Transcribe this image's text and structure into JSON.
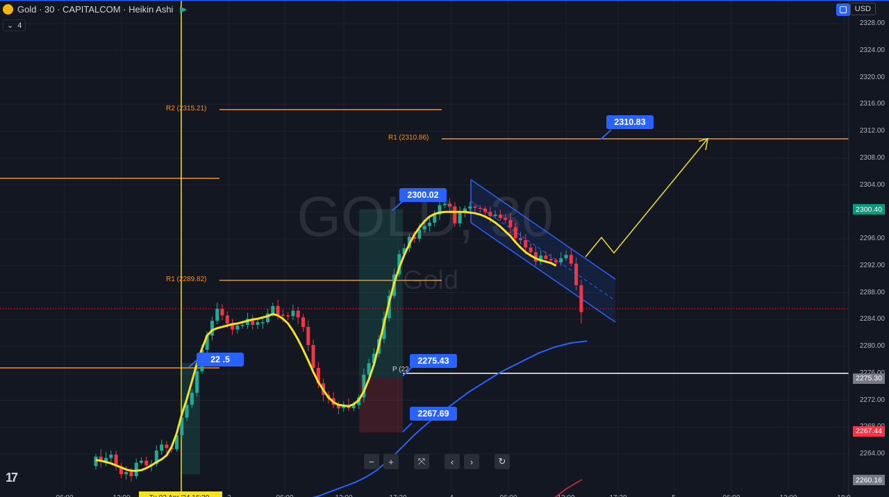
{
  "header": {
    "title": "Gold · 30 · CAPITALCOM · Heikin Ashi",
    "indicator_count": "4",
    "currency": "USD",
    "icons": [
      "gold-symbol-icon",
      "flag-icon",
      "chevron-down-icon",
      "sync-icon"
    ]
  },
  "watermark": {
    "symbol": "GOLD, 30",
    "name": "Gold"
  },
  "nav": {
    "zoom_out": "−",
    "zoom_in": "+",
    "reset": "⤧",
    "back": "‹",
    "forward": "›",
    "refresh": "↻"
  },
  "colors": {
    "up": "#22ab94",
    "down": "#f23645",
    "ma_fast": "#f5e321",
    "ma_slow": "#2962ff",
    "pivot": "#f7931a",
    "channel": "#2962ff",
    "callout": "#2962ff"
  },
  "chart_data": {
    "type": "candlestick",
    "title": "Gold · 30 · CAPITALCOM · Heikin Ashi",
    "y_ticks": [
      2264.0,
      2268.0,
      2272.0,
      2276.0,
      2280.0,
      2284.0,
      2288.0,
      2292.0,
      2296.0,
      2300.0,
      2304.0,
      2308.0,
      2312.0,
      2316.0,
      2320.0,
      2324.0,
      2328.0
    ],
    "y_range": [
      2258.5,
      2329.0
    ],
    "x_tick_labels": [
      "06:00",
      "12:00",
      "Tu 02 Apr '24 16:30",
      "3",
      "06:00",
      "12:00",
      "17:30",
      "4",
      "06:00",
      "12:00",
      "17:30",
      "5",
      "06:00",
      "12:00",
      "18:0"
    ],
    "price_tags": [
      {
        "value": "2300.40",
        "price": 2300.4,
        "color": "#089981"
      },
      {
        "value": "2275.30",
        "price": 2275.3,
        "color": "#787b86"
      },
      {
        "value": "2267.44",
        "price": 2267.44,
        "color": "#f23645"
      },
      {
        "value": "2260.16",
        "price": 2260.16,
        "color": "#787b86"
      }
    ],
    "pivots": [
      {
        "label": "R2 (2315.21)",
        "price": 2315.21
      },
      {
        "label": "R1 (2310.86)",
        "price": 2310.86
      },
      {
        "label": "R1 (2289.82)",
        "price": 2289.82
      },
      {
        "label": "P (22",
        "price": 2276.0
      }
    ],
    "callouts": [
      {
        "label": "2310.83",
        "price": 2310.83
      },
      {
        "label": "2300.02",
        "price": 2300.02
      },
      {
        "label": "2275.43",
        "price": 2275.43
      },
      {
        "label": "2267.69",
        "price": 2267.69
      },
      {
        "label": "22 .5",
        "price": 2277.5
      }
    ],
    "candles": [
      [
        2262.2,
        2263.6,
        2261.7,
        2264.0
      ],
      [
        2263.6,
        2262.8,
        2261.9,
        2264.7
      ],
      [
        2262.8,
        2263.4,
        2262.2,
        2264.3
      ],
      [
        2263.4,
        2263.9,
        2262.5,
        2264.5
      ],
      [
        2263.9,
        2262.2,
        2261.6,
        2264.5
      ],
      [
        2262.2,
        2261.0,
        2260.4,
        2262.7
      ],
      [
        2261.0,
        2261.3,
        2260.2,
        2262.2
      ],
      [
        2261.3,
        2260.7,
        2259.9,
        2261.9
      ],
      [
        2260.7,
        2262.7,
        2260.3,
        2263.3
      ],
      [
        2262.7,
        2263.0,
        2262.4,
        2263.5
      ],
      [
        2263.0,
        2262.3,
        2262.0,
        2263.6
      ],
      [
        2262.3,
        2262.5,
        2261.4,
        2263.1
      ],
      [
        2262.5,
        2264.5,
        2262.1,
        2265.3
      ],
      [
        2264.5,
        2265.4,
        2263.9,
        2266.1
      ],
      [
        2265.4,
        2264.9,
        2264.1,
        2265.9
      ],
      [
        2264.9,
        2264.7,
        2264.2,
        2265.6
      ],
      [
        2264.7,
        2266.8,
        2264.4,
        2267.4
      ],
      [
        2266.8,
        2269.4,
        2266.1,
        2270.2
      ],
      [
        2269.4,
        2271.3,
        2268.9,
        2272.2
      ],
      [
        2271.3,
        2273.1,
        2270.8,
        2273.6
      ],
      [
        2273.1,
        2276.3,
        2272.5,
        2277.1
      ],
      [
        2276.3,
        2279.5,
        2275.9,
        2280.3
      ],
      [
        2279.5,
        2281.6,
        2278.8,
        2282.2
      ],
      [
        2281.6,
        2283.8,
        2280.9,
        2284.4
      ],
      [
        2283.8,
        2285.6,
        2283.3,
        2286.5
      ],
      [
        2285.6,
        2284.6,
        2283.9,
        2286.3
      ],
      [
        2284.6,
        2283.4,
        2282.7,
        2285.2
      ],
      [
        2283.4,
        2282.5,
        2281.7,
        2284.1
      ],
      [
        2282.5,
        2283.1,
        2281.9,
        2283.5
      ],
      [
        2283.1,
        2283.2,
        2282.6,
        2283.7
      ],
      [
        2283.2,
        2284.1,
        2282.6,
        2285.0
      ],
      [
        2284.1,
        2283.2,
        2282.5,
        2284.7
      ],
      [
        2283.2,
        2283.6,
        2282.6,
        2284.0
      ],
      [
        2283.6,
        2283.6,
        2282.6,
        2284.2
      ],
      [
        2283.6,
        2284.9,
        2283.3,
        2285.6
      ],
      [
        2284.9,
        2286.0,
        2284.4,
        2286.5
      ],
      [
        2286.0,
        2284.7,
        2284.0,
        2286.9
      ],
      [
        2284.7,
        2284.6,
        2283.6,
        2285.5
      ],
      [
        2284.6,
        2284.5,
        2283.9,
        2285.1
      ],
      [
        2284.5,
        2285.3,
        2283.9,
        2286.2
      ],
      [
        2285.3,
        2284.3,
        2283.3,
        2285.9
      ],
      [
        2284.3,
        2282.9,
        2282.2,
        2284.8
      ],
      [
        2282.9,
        2280.2,
        2279.3,
        2283.8
      ],
      [
        2280.2,
        2276.8,
        2275.9,
        2281.0
      ],
      [
        2276.8,
        2274.5,
        2273.8,
        2277.7
      ],
      [
        2274.5,
        2272.8,
        2271.8,
        2275.2
      ],
      [
        2272.8,
        2272.3,
        2271.5,
        2273.3
      ],
      [
        2272.3,
        2271.3,
        2270.8,
        2273.2
      ],
      [
        2271.3,
        2270.8,
        2269.9,
        2271.8
      ],
      [
        2270.8,
        2271.3,
        2270.3,
        2271.8
      ],
      [
        2271.3,
        2270.8,
        2270.4,
        2272.3
      ],
      [
        2270.8,
        2271.3,
        2270.4,
        2271.8
      ],
      [
        2271.3,
        2272.4,
        2270.7,
        2272.8
      ],
      [
        2272.4,
        2275.8,
        2271.6,
        2276.7
      ],
      [
        2275.8,
        2277.5,
        2275.3,
        2278.2
      ],
      [
        2277.5,
        2278.9,
        2277.1,
        2279.7
      ],
      [
        2278.9,
        2281.1,
        2278.4,
        2281.7
      ],
      [
        2281.1,
        2284.2,
        2280.5,
        2285.2
      ],
      [
        2284.2,
        2287.5,
        2283.7,
        2288.4
      ],
      [
        2287.5,
        2290.7,
        2287.1,
        2291.6
      ],
      [
        2290.7,
        2293.7,
        2290.3,
        2294.3
      ],
      [
        2293.7,
        2294.6,
        2293.1,
        2295.3
      ],
      [
        2294.6,
        2296.3,
        2294.0,
        2296.8
      ],
      [
        2296.3,
        2296.0,
        2295.4,
        2297.1
      ],
      [
        2296.0,
        2297.4,
        2295.5,
        2298.3
      ],
      [
        2297.4,
        2297.9,
        2296.9,
        2298.9
      ],
      [
        2297.9,
        2298.4,
        2297.1,
        2299.2
      ],
      [
        2298.4,
        2299.6,
        2297.8,
        2300.2
      ],
      [
        2299.6,
        2301.0,
        2298.8,
        2301.7
      ],
      [
        2301.0,
        2301.2,
        2300.5,
        2302.0
      ],
      [
        2301.2,
        2300.8,
        2300.0,
        2302.1
      ],
      [
        2300.8,
        2298.3,
        2297.8,
        2301.5
      ],
      [
        2298.3,
        2300.1,
        2297.8,
        2300.8
      ],
      [
        2300.1,
        2300.5,
        2299.2,
        2300.9
      ],
      [
        2300.5,
        2300.8,
        2300.1,
        2301.5
      ],
      [
        2300.8,
        2300.6,
        2300.0,
        2301.2
      ],
      [
        2300.6,
        2300.5,
        2299.9,
        2301.0
      ],
      [
        2300.5,
        2300.0,
        2299.6,
        2300.9
      ],
      [
        2300.0,
        2299.4,
        2298.4,
        2300.8
      ],
      [
        2299.4,
        2299.6,
        2299.0,
        2300.2
      ],
      [
        2299.6,
        2299.1,
        2298.7,
        2300.3
      ],
      [
        2299.1,
        2298.8,
        2298.3,
        2299.6
      ],
      [
        2298.8,
        2297.7,
        2296.8,
        2299.8
      ],
      [
        2297.7,
        2296.1,
        2295.3,
        2298.4
      ],
      [
        2296.1,
        2295.8,
        2295.2,
        2297.0
      ],
      [
        2295.8,
        2294.7,
        2293.7,
        2296.7
      ],
      [
        2294.7,
        2294.0,
        2293.4,
        2295.3
      ],
      [
        2294.0,
        2292.6,
        2292.0,
        2294.9
      ],
      [
        2292.6,
        2293.5,
        2292.1,
        2294.3
      ],
      [
        2293.5,
        2293.0,
        2292.6,
        2294.1
      ],
      [
        2293.0,
        2292.8,
        2292.3,
        2293.8
      ],
      [
        2292.8,
        2292.5,
        2291.9,
        2293.1
      ],
      [
        2292.5,
        2293.1,
        2292.0,
        2294.0
      ],
      [
        2293.1,
        2293.6,
        2292.7,
        2294.3
      ],
      [
        2293.6,
        2292.3,
        2291.9,
        2294.4
      ],
      [
        2292.3,
        2289.1,
        2288.3,
        2293.2
      ],
      [
        2289.1,
        2285.1,
        2283.4,
        2289.9
      ]
    ],
    "ma_fast": [
      2263.1,
      2263.0,
      2262.8,
      2262.6,
      2262.3,
      2262.0,
      2261.7,
      2261.5,
      2261.5,
      2261.6,
      2261.9,
      2262.3,
      2262.8,
      2263.2,
      2263.8,
      2265.1,
      2267.1,
      2269.9,
      2272.2,
      2274.8,
      2277.5,
      2279.7,
      2281.6,
      2282.4,
      2282.7,
      2282.9,
      2283.1,
      2283.3,
      2283.4,
      2283.6,
      2283.8,
      2284.0,
      2284.1,
      2284.3,
      2284.5,
      2284.8,
      2284.6,
      2284.1,
      2283.4,
      2282.3,
      2281.0,
      2279.5,
      2277.9,
      2276.2,
      2274.7,
      2273.5,
      2272.4,
      2271.7,
      2271.3,
      2271.2,
      2271.1,
      2271.4,
      2272.0,
      2273.3,
      2275.1,
      2277.3,
      2280.2,
      2283.4,
      2286.5,
      2289.4,
      2291.7,
      2293.6,
      2295.2,
      2296.6,
      2297.7,
      2298.6,
      2299.3,
      2299.7,
      2299.9,
      2300.0,
      2300.0,
      2300.0,
      2300.0,
      2300.0,
      2299.9,
      2299.8,
      2299.6,
      2299.3,
      2298.9,
      2298.4,
      2297.8,
      2297.1,
      2296.4,
      2295.5,
      2294.7,
      2294.0,
      2293.5,
      2293.1,
      2292.8,
      2292.6,
      2292.4,
      2292.0
    ],
    "ma_slow": [
      2257.5,
      2257.7,
      2258.0,
      2258.3,
      2258.6,
      2258.9,
      2259.2,
      2259.5,
      2259.8,
      2260.2,
      2260.6,
      2261.1,
      2261.6,
      2262.3,
      2263.0,
      2263.7,
      2264.5,
      2265.3,
      2266.1,
      2266.9,
      2267.6,
      2268.3,
      2269.0,
      2269.6,
      2270.2,
      2270.8,
      2271.4,
      2272.0,
      2272.6,
      2273.2,
      2273.7,
      2274.2,
      2274.7,
      2275.2,
      2275.7,
      2276.2,
      2276.6,
      2277.0,
      2277.4,
      2277.8,
      2278.2,
      2278.6,
      2279.0,
      2279.3,
      2279.6,
      2279.9,
      2280.1,
      2280.3,
      2280.5,
      2280.6,
      2280.7,
      2280.8
    ]
  }
}
